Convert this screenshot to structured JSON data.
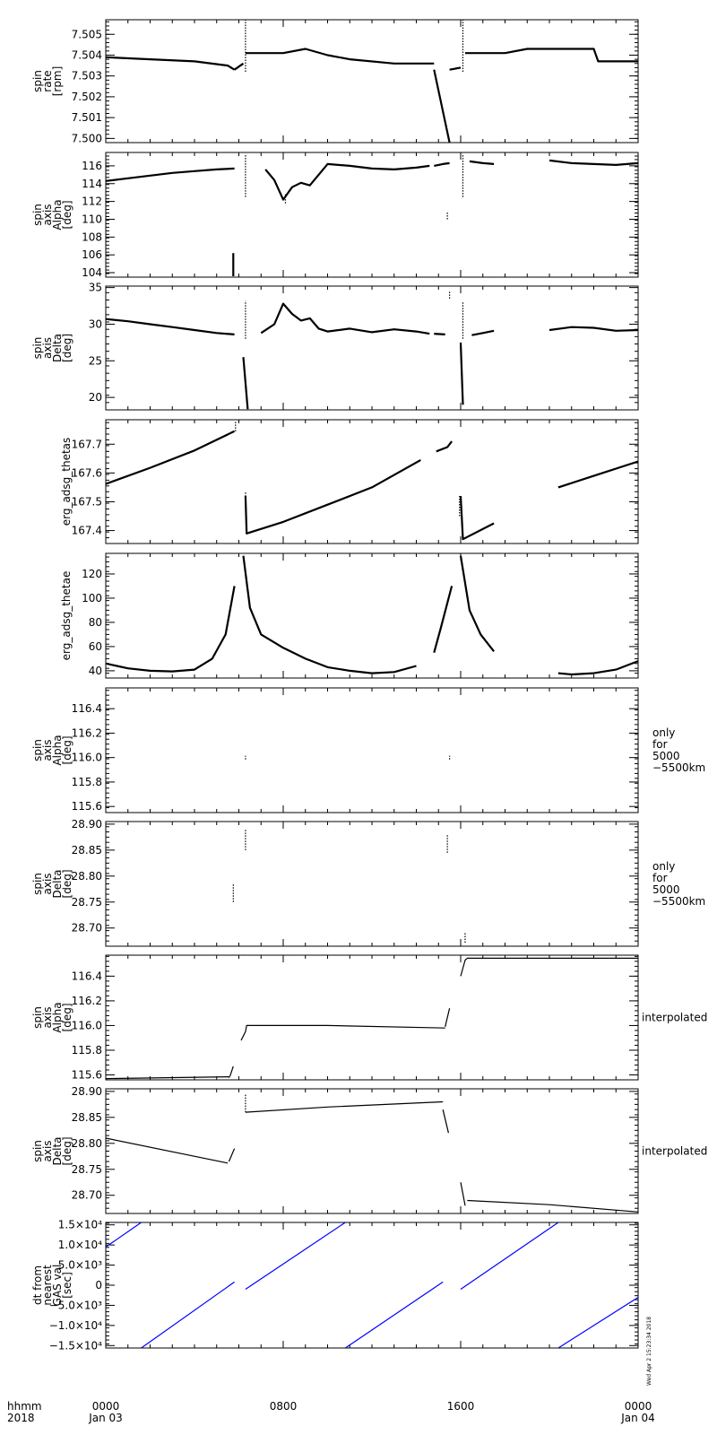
{
  "time_axis": {
    "title_lines": [
      "hhmm",
      "2018"
    ],
    "ticks": [
      {
        "hours": 0,
        "lines": [
          "0000",
          "Jan 03"
        ]
      },
      {
        "hours": 8,
        "lines": [
          "0800"
        ]
      },
      {
        "hours": 16,
        "lines": [
          "1600"
        ]
      },
      {
        "hours": 24,
        "lines": [
          "0000",
          "Jan 04"
        ]
      }
    ]
  },
  "timestamp": "Wed Apr  2 15:23:34 2018",
  "chart_data": [
    {
      "type": "scatter",
      "ylabel": [
        "spin",
        "rate",
        "[rpm]"
      ],
      "ylim": [
        7.4998,
        7.5057
      ],
      "yticks": [
        7.5,
        7.501,
        7.502,
        7.503,
        7.504,
        7.505
      ],
      "ytick_labels": [
        "7.500",
        "7.501",
        "7.502",
        "7.503",
        "7.504",
        "7.505"
      ],
      "side_label": [],
      "segments": [
        [
          [
            0,
            7.5039
          ],
          [
            2,
            7.5038
          ],
          [
            4,
            7.5037
          ],
          [
            5.5,
            7.5035
          ],
          [
            5.8,
            7.5033
          ]
        ],
        [
          [
            5.8,
            7.5033
          ],
          [
            6.2,
            7.5036
          ]
        ],
        [
          [
            6.3,
            7.5041
          ],
          [
            8,
            7.5041
          ],
          [
            9,
            7.5043
          ],
          [
            10,
            7.504
          ],
          [
            11,
            7.5038
          ],
          [
            13,
            7.5036
          ],
          [
            14.8,
            7.5036
          ]
        ],
        [
          [
            14.8,
            7.5033
          ],
          [
            15.5,
            7.4998
          ]
        ],
        [
          [
            15.5,
            7.5033
          ],
          [
            16,
            7.5034
          ]
        ],
        [
          [
            16.2,
            7.5041
          ],
          [
            18,
            7.5041
          ],
          [
            19,
            7.5043
          ],
          [
            22,
            7.5043
          ],
          [
            22.2,
            7.5037
          ],
          [
            24,
            7.5037
          ]
        ]
      ],
      "vlines": [
        [
          6.3,
          7.5032,
          7.5057
        ],
        [
          16.1,
          7.5032,
          7.5057
        ]
      ]
    },
    {
      "type": "scatter",
      "ylabel": [
        "spin",
        "axis",
        "Alpha",
        "[deg]"
      ],
      "ylim": [
        103.5,
        117.5
      ],
      "yticks": [
        104,
        106,
        108,
        110,
        112,
        114,
        116
      ],
      "ytick_labels": [
        "104",
        "106",
        "108",
        "110",
        "112",
        "114",
        "116"
      ],
      "side_label": [],
      "segments": [
        [
          [
            0,
            114.3
          ],
          [
            1,
            114.6
          ],
          [
            2,
            114.9
          ],
          [
            3,
            115.2
          ],
          [
            4,
            115.4
          ],
          [
            5,
            115.6
          ],
          [
            5.8,
            115.7
          ]
        ],
        [
          [
            5.75,
            103.6
          ],
          [
            5.75,
            106.2
          ]
        ],
        [
          [
            7.2,
            115.6
          ],
          [
            7.6,
            114.4
          ],
          [
            8.0,
            112.2
          ],
          [
            8.4,
            113.6
          ],
          [
            8.8,
            114.1
          ],
          [
            9.2,
            113.8
          ],
          [
            9.6,
            115.0
          ],
          [
            10,
            116.2
          ],
          [
            11,
            116.0
          ],
          [
            12,
            115.7
          ],
          [
            13,
            115.6
          ],
          [
            14,
            115.8
          ],
          [
            14.6,
            116.0
          ]
        ],
        [
          [
            14.8,
            116.0
          ],
          [
            15.2,
            116.2
          ],
          [
            15.5,
            116.3
          ]
        ],
        [
          [
            16.4,
            116.5
          ],
          [
            17,
            116.3
          ],
          [
            17.5,
            116.2
          ]
        ],
        [
          [
            20,
            116.6
          ],
          [
            21,
            116.3
          ],
          [
            22,
            116.2
          ],
          [
            23,
            116.1
          ],
          [
            24,
            116.3
          ]
        ]
      ],
      "vlines": [
        [
          6.3,
          112.5,
          117.3
        ],
        [
          15.4,
          110.0,
          110.9
        ],
        [
          16.1,
          112.5,
          117.3
        ],
        [
          8.1,
          111.8,
          112.8
        ]
      ]
    },
    {
      "type": "scatter",
      "ylabel": [
        "spin",
        "axis",
        "Delta",
        "[deg]"
      ],
      "ylim": [
        18.3,
        35.2
      ],
      "yticks": [
        20,
        25,
        30,
        35
      ],
      "ytick_labels": [
        "20",
        "25",
        "30",
        "35"
      ],
      "side_label": [],
      "segments": [
        [
          [
            0,
            30.7
          ],
          [
            1,
            30.4
          ],
          [
            2,
            30.0
          ],
          [
            3,
            29.6
          ],
          [
            4,
            29.2
          ],
          [
            5,
            28.8
          ],
          [
            5.8,
            28.6
          ]
        ],
        [
          [
            6.2,
            25.5
          ],
          [
            6.4,
            18.4
          ]
        ],
        [
          [
            7.0,
            28.8
          ],
          [
            7.6,
            30.0
          ],
          [
            8.0,
            32.8
          ],
          [
            8.4,
            31.4
          ],
          [
            8.8,
            30.5
          ],
          [
            9.2,
            30.8
          ],
          [
            9.6,
            29.4
          ],
          [
            10,
            29.0
          ],
          [
            11,
            29.4
          ],
          [
            12,
            28.9
          ],
          [
            13,
            29.3
          ],
          [
            14,
            29.0
          ],
          [
            14.6,
            28.7
          ]
        ],
        [
          [
            14.8,
            28.7
          ],
          [
            15.3,
            28.6
          ]
        ],
        [
          [
            16.0,
            27.5
          ],
          [
            16.1,
            19.0
          ]
        ],
        [
          [
            16.5,
            28.5
          ],
          [
            17,
            28.8
          ],
          [
            17.5,
            29.1
          ]
        ],
        [
          [
            20,
            29.2
          ],
          [
            21,
            29.6
          ],
          [
            22,
            29.5
          ],
          [
            23,
            29.1
          ],
          [
            24,
            29.2
          ]
        ]
      ],
      "vlines": [
        [
          6.3,
          28.0,
          33.2
        ],
        [
          15.5,
          33.5,
          34.5
        ],
        [
          16.1,
          28.0,
          33.0
        ]
      ]
    },
    {
      "type": "scatter",
      "ylabel": [
        "erg_adsg_thetas"
      ],
      "ylim": [
        167.355,
        167.785
      ],
      "yticks": [
        167.4,
        167.5,
        167.6,
        167.7
      ],
      "ytick_labels": [
        "167.4",
        "167.5",
        "167.6",
        "167.7"
      ],
      "side_label": [],
      "segments": [
        [
          [
            0,
            167.562
          ],
          [
            2,
            167.618
          ],
          [
            4,
            167.678
          ],
          [
            5.8,
            167.745
          ]
        ],
        [
          [
            6.3,
            167.52
          ],
          [
            6.35,
            167.39
          ],
          [
            8,
            167.43
          ],
          [
            10,
            167.49
          ],
          [
            12,
            167.55
          ],
          [
            14.2,
            167.645
          ]
        ],
        [
          [
            14.9,
            167.675
          ],
          [
            15.4,
            167.69
          ],
          [
            15.6,
            167.71
          ]
        ],
        [
          [
            16.0,
            167.52
          ],
          [
            16.1,
            167.37
          ],
          [
            17.5,
            167.425
          ]
        ],
        [
          [
            20.4,
            167.55
          ],
          [
            22,
            167.59
          ],
          [
            24,
            167.64
          ]
        ]
      ],
      "vlines": [
        [
          5.85,
          167.745,
          167.78
        ],
        [
          6.3,
          167.49,
          167.535
        ],
        [
          15.95,
          167.45,
          167.52
        ]
      ]
    },
    {
      "type": "scatter",
      "ylabel": [
        "erg_adsg_thetae"
      ],
      "ylim": [
        34,
        137
      ],
      "yticks": [
        40,
        60,
        80,
        100,
        120
      ],
      "ytick_labels": [
        "40",
        "60",
        "80",
        "100",
        "120"
      ],
      "side_label": [],
      "segments": [
        [
          [
            0,
            46
          ],
          [
            0.5,
            44
          ],
          [
            1,
            42
          ],
          [
            2,
            40
          ],
          [
            3,
            39.5
          ],
          [
            4,
            41
          ],
          [
            4.8,
            50
          ],
          [
            5.4,
            70
          ],
          [
            5.8,
            110
          ]
        ],
        [
          [
            6.2,
            135
          ],
          [
            6.5,
            92
          ],
          [
            7,
            70
          ],
          [
            8,
            59
          ],
          [
            9,
            50
          ],
          [
            10,
            43
          ],
          [
            11,
            40
          ],
          [
            12,
            38
          ],
          [
            13,
            39
          ],
          [
            14,
            44
          ]
        ],
        [
          [
            14.8,
            55
          ],
          [
            15.1,
            75
          ],
          [
            15.6,
            110
          ]
        ],
        [
          [
            16.0,
            135
          ],
          [
            16.4,
            90
          ],
          [
            16.9,
            70
          ],
          [
            17.5,
            56
          ]
        ],
        [
          [
            20.4,
            38
          ],
          [
            21,
            37
          ],
          [
            22,
            38
          ],
          [
            23,
            41
          ],
          [
            24,
            48
          ]
        ]
      ],
      "vlines": []
    },
    {
      "type": "scatter",
      "ylabel": [
        "spin",
        "axis",
        "Alpha",
        "[deg]"
      ],
      "ylim": [
        115.55,
        116.57
      ],
      "yticks": [
        115.6,
        115.8,
        116.0,
        116.2,
        116.4
      ],
      "ytick_labels": [
        "115.6",
        "115.8",
        "116.0",
        "116.2",
        "116.4"
      ],
      "side_label": [
        "only",
        "for",
        "5000",
        "−5500km"
      ],
      "segments": [],
      "vlines": [
        [
          6.3,
          115.985,
          116.015
        ],
        [
          15.5,
          115.985,
          116.015
        ]
      ]
    },
    {
      "type": "scatter",
      "ylabel": [
        "spin",
        "axis",
        "Delta",
        "[deg]"
      ],
      "ylim": [
        28.665,
        28.905
      ],
      "yticks": [
        28.7,
        28.75,
        28.8,
        28.85,
        28.9
      ],
      "ytick_labels": [
        "28.70",
        "28.75",
        "28.80",
        "28.85",
        "28.90"
      ],
      "side_label": [
        "only",
        "for",
        "5000",
        "−5500km"
      ],
      "segments": [],
      "vlines": [
        [
          5.75,
          28.75,
          28.785
        ],
        [
          6.3,
          28.85,
          28.89
        ],
        [
          15.4,
          28.845,
          28.88
        ],
        [
          16.2,
          28.672,
          28.69
        ]
      ]
    },
    {
      "type": "line",
      "ylabel": [
        "spin",
        "axis",
        "Alpha",
        "[deg]"
      ],
      "ylim": [
        115.56,
        116.57
      ],
      "yticks": [
        115.6,
        115.8,
        116.0,
        116.2,
        116.4
      ],
      "ytick_labels": [
        "115.6",
        "115.8",
        "116.0",
        "116.2",
        "116.4"
      ],
      "side_label": [
        "interpolated"
      ],
      "segments": [
        [
          [
            0,
            115.57
          ],
          [
            5.6,
            115.585
          ]
        ],
        [
          [
            5.6,
            115.59
          ],
          [
            5.75,
            115.67
          ]
        ],
        [
          [
            6.1,
            115.88
          ],
          [
            6.3,
            115.95
          ],
          [
            6.35,
            116.0
          ],
          [
            10,
            116.0
          ],
          [
            15.3,
            115.98
          ]
        ],
        [
          [
            15.3,
            115.99
          ],
          [
            15.5,
            116.14
          ]
        ],
        [
          [
            16.0,
            116.4
          ],
          [
            16.2,
            116.53
          ],
          [
            16.3,
            116.545
          ],
          [
            24,
            116.545
          ]
        ]
      ],
      "vlines": []
    },
    {
      "type": "line",
      "ylabel": [
        "spin",
        "axis",
        "Delta",
        "[deg]"
      ],
      "ylim": [
        28.665,
        28.905
      ],
      "yticks": [
        28.7,
        28.75,
        28.8,
        28.85,
        28.9
      ],
      "ytick_labels": [
        "28.70",
        "28.75",
        "28.80",
        "28.85",
        "28.90"
      ],
      "side_label": [
        "interpolated"
      ],
      "segments": [
        [
          [
            0,
            28.81
          ],
          [
            5.5,
            28.762
          ]
        ],
        [
          [
            5.55,
            28.765
          ],
          [
            5.8,
            28.79
          ]
        ],
        [
          [
            6.3,
            28.86
          ],
          [
            10,
            28.87
          ],
          [
            15.2,
            28.88
          ]
        ],
        [
          [
            15.2,
            28.865
          ],
          [
            15.45,
            28.82
          ]
        ],
        [
          [
            16.0,
            28.725
          ],
          [
            16.2,
            28.68
          ]
        ],
        [
          [
            16.3,
            28.69
          ],
          [
            20,
            28.682
          ],
          [
            24,
            28.668
          ]
        ]
      ],
      "vlines": [
        [
          6.3,
          28.86,
          28.895
        ]
      ]
    },
    {
      "type": "line",
      "ylabel": [
        "dt from",
        "nearest",
        "GAS val",
        "[sec]"
      ],
      "ylim": [
        -15600,
        15600
      ],
      "yticks": [
        -15000,
        -10000,
        -5000,
        0,
        5000,
        10000,
        15000
      ],
      "ytick_labels": [
        "−1.5×10⁴",
        "−1.0×10⁴",
        "−5.0×10³",
        "0",
        "5.0×10³",
        "1.0×10⁴",
        "1.5×10⁴"
      ],
      "side_label": [],
      "line_color": "#0000ff",
      "segments": [
        [
          [
            0,
            9500
          ],
          [
            1.6,
            15600
          ]
        ],
        [
          [
            1.6,
            -15600
          ],
          [
            5.8,
            800
          ]
        ],
        [
          [
            6.3,
            -1000
          ],
          [
            10.8,
            15600
          ]
        ],
        [
          [
            10.8,
            -15600
          ],
          [
            15.2,
            800
          ]
        ],
        [
          [
            16.0,
            -1000
          ],
          [
            20.4,
            15600
          ]
        ],
        [
          [
            20.4,
            -15600
          ],
          [
            24,
            -3000
          ]
        ]
      ],
      "vlines": []
    }
  ]
}
